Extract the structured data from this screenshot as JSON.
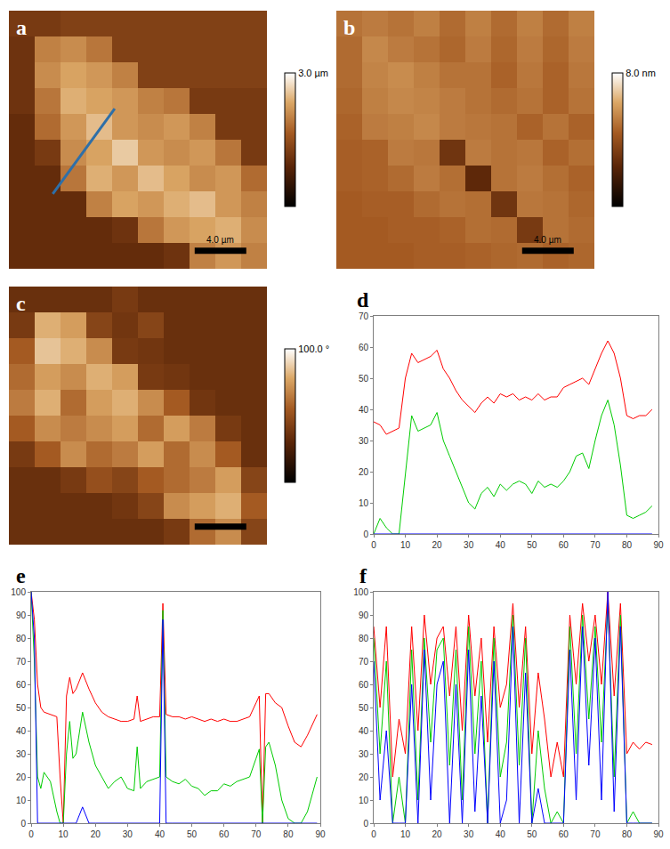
{
  "chart_data": [
    {
      "type": "heatmap",
      "panel": "a",
      "z": [
        [
          1.2,
          1.2,
          1.3,
          1.3,
          1.3,
          1.3,
          1.3,
          1.3,
          1.3,
          1.3
        ],
        [
          1.1,
          2.0,
          2.1,
          1.9,
          1.3,
          1.3,
          1.3,
          1.3,
          1.3,
          1.3
        ],
        [
          1.1,
          2.1,
          2.3,
          2.2,
          2.0,
          1.3,
          1.3,
          1.3,
          1.3,
          1.3
        ],
        [
          1.1,
          1.9,
          2.4,
          2.3,
          2.2,
          2.0,
          1.9,
          1.2,
          1.2,
          1.2
        ],
        [
          1.0,
          1.8,
          2.2,
          2.5,
          2.2,
          2.1,
          2.2,
          2.0,
          1.2,
          1.2
        ],
        [
          1.0,
          1.2,
          2.1,
          2.3,
          2.6,
          2.2,
          2.1,
          2.2,
          1.9,
          1.2
        ],
        [
          1.0,
          1.0,
          1.9,
          2.4,
          2.2,
          2.5,
          2.3,
          2.1,
          2.2,
          1.8
        ],
        [
          1.0,
          1.0,
          1.0,
          2.0,
          2.3,
          2.2,
          2.4,
          2.5,
          2.2,
          2.0
        ],
        [
          1.0,
          1.0,
          1.0,
          1.0,
          1.1,
          1.9,
          2.2,
          2.3,
          2.4,
          2.1
        ],
        [
          1.0,
          1.0,
          1.0,
          1.0,
          1.0,
          1.0,
          1.1,
          2.0,
          2.2,
          2.0
        ]
      ],
      "colorbar": {
        "range": [
          0,
          3
        ],
        "ticks": [
          {
            "value": 3,
            "label": "3.0 µm"
          }
        ]
      },
      "scale_bar": {
        "label": "4.0 µm"
      },
      "profile_line": {
        "x": [
          1.2,
          3.6
        ],
        "y": [
          6.6,
          3.3
        ],
        "color": "#2e6fa8"
      },
      "tick_labels": false
    },
    {
      "type": "heatmap",
      "panel": "b",
      "z": [
        [
          5.0,
          5.2,
          5.0,
          5.3,
          4.8,
          5.3,
          4.8,
          5.3,
          4.8,
          5.3
        ],
        [
          4.8,
          5.5,
          5.2,
          5.0,
          4.7,
          5.2,
          4.7,
          5.2,
          4.7,
          5.2
        ],
        [
          4.8,
          5.4,
          5.6,
          5.3,
          5.0,
          5.0,
          4.6,
          5.1,
          4.6,
          5.1
        ],
        [
          4.7,
          5.3,
          5.5,
          5.4,
          5.2,
          5.0,
          4.8,
          5.0,
          4.6,
          5.0
        ],
        [
          4.6,
          5.2,
          5.3,
          5.5,
          5.2,
          5.1,
          5.0,
          4.6,
          5.0,
          4.6
        ],
        [
          4.5,
          4.6,
          5.2,
          5.1,
          3.0,
          5.2,
          5.0,
          5.1,
          4.6,
          4.9
        ],
        [
          4.5,
          4.6,
          4.8,
          5.2,
          4.9,
          2.5,
          5.0,
          5.2,
          4.9,
          4.6
        ],
        [
          4.4,
          4.5,
          4.5,
          4.8,
          5.0,
          4.9,
          3.0,
          5.1,
          5.0,
          4.7
        ],
        [
          4.4,
          4.4,
          4.5,
          4.5,
          4.6,
          4.9,
          4.8,
          3.2,
          5.0,
          4.8
        ],
        [
          4.4,
          4.4,
          4.4,
          4.5,
          4.5,
          4.6,
          4.7,
          4.8,
          4.6,
          4.7
        ]
      ],
      "colorbar": {
        "range": [
          0,
          8
        ],
        "ticks": [
          {
            "value": 8,
            "label": "8.0 nm"
          }
        ]
      },
      "scale_bar": {
        "label": "4.0 µm"
      },
      "tick_labels": false
    },
    {
      "type": "heatmap",
      "panel": "c",
      "z": [
        [
          35,
          35,
          35,
          35,
          40,
          35,
          35,
          35,
          35,
          35
        ],
        [
          40,
          80,
          75,
          45,
          38,
          45,
          35,
          35,
          35,
          35
        ],
        [
          55,
          85,
          80,
          70,
          40,
          38,
          35,
          35,
          35,
          35
        ],
        [
          60,
          75,
          70,
          80,
          75,
          40,
          38,
          35,
          35,
          35
        ],
        [
          65,
          80,
          60,
          75,
          80,
          70,
          55,
          38,
          35,
          35
        ],
        [
          55,
          70,
          65,
          70,
          75,
          60,
          75,
          65,
          40,
          35
        ],
        [
          40,
          55,
          70,
          60,
          65,
          75,
          60,
          70,
          55,
          35
        ],
        [
          35,
          35,
          40,
          50,
          45,
          55,
          60,
          65,
          75,
          45
        ],
        [
          35,
          35,
          35,
          35,
          38,
          45,
          70,
          75,
          80,
          55
        ],
        [
          35,
          35,
          35,
          35,
          35,
          35,
          40,
          60,
          70,
          45
        ]
      ],
      "colorbar": {
        "range": [
          0,
          100
        ],
        "ticks": [
          {
            "value": 100,
            "label": "100.0 °"
          }
        ]
      },
      "scale_bar": true,
      "tick_labels": false
    },
    {
      "type": "line",
      "panel": "d",
      "x": [
        0,
        2,
        4,
        6,
        8,
        10,
        12,
        14,
        16,
        18,
        20,
        22,
        24,
        26,
        28,
        30,
        32,
        34,
        36,
        38,
        40,
        42,
        44,
        46,
        48,
        50,
        52,
        54,
        56,
        58,
        60,
        62,
        64,
        66,
        68,
        70,
        72,
        74,
        76,
        78,
        80,
        82,
        84,
        86,
        88
      ],
      "series": [
        {
          "color": "#ff0000",
          "values": [
            36,
            35,
            32,
            33,
            34,
            50,
            58,
            55,
            56,
            57,
            59,
            53,
            50,
            46,
            43,
            41,
            39,
            42,
            44,
            42,
            45,
            44,
            45,
            43,
            44,
            43,
            45,
            43,
            44,
            44,
            47,
            48,
            49,
            50,
            48,
            53,
            58,
            62,
            58,
            50,
            38,
            37,
            38,
            38,
            40
          ]
        },
        {
          "color": "#00cc00",
          "values": [
            0,
            5,
            2,
            0,
            0,
            20,
            38,
            33,
            34,
            35,
            39,
            30,
            25,
            20,
            15,
            10,
            8,
            13,
            15,
            12,
            16,
            14,
            16,
            17,
            16,
            13,
            17,
            15,
            16,
            15,
            17,
            20,
            25,
            26,
            21,
            30,
            38,
            43,
            35,
            22,
            6,
            5,
            6,
            7,
            9
          ]
        },
        {
          "color": "#0000ff",
          "values": [
            0,
            0,
            0,
            0,
            0,
            0,
            0,
            0,
            0,
            0,
            0,
            0,
            0,
            0,
            0,
            0,
            0,
            0,
            0,
            0,
            0,
            0,
            0,
            0,
            0,
            0,
            0,
            0,
            0,
            0,
            0,
            0,
            0,
            0,
            0,
            0,
            0,
            0,
            0,
            0,
            0,
            0,
            0,
            0,
            0
          ]
        }
      ],
      "xlim": [
        0,
        90
      ],
      "xticks": [
        0,
        10,
        20,
        30,
        40,
        50,
        60,
        70,
        80,
        90
      ],
      "ylim": [
        0,
        70
      ],
      "yticks": [
        0,
        10,
        20,
        30,
        40,
        50,
        60,
        70
      ],
      "grid": false
    },
    {
      "type": "line",
      "panel": "e",
      "x": [
        0,
        1,
        2,
        3,
        4,
        6,
        8,
        9,
        10,
        11,
        12,
        13,
        14,
        16,
        18,
        20,
        22,
        24,
        26,
        28,
        30,
        32,
        33,
        34,
        36,
        38,
        40,
        41,
        42,
        44,
        46,
        48,
        50,
        52,
        54,
        56,
        58,
        60,
        62,
        64,
        66,
        68,
        70,
        71,
        72,
        73,
        74,
        76,
        78,
        80,
        82,
        84,
        86,
        88,
        89
      ],
      "series": [
        {
          "color": "#ff0000",
          "values": [
            100,
            88,
            60,
            50,
            48,
            47,
            46,
            20,
            0,
            55,
            63,
            56,
            58,
            65,
            58,
            52,
            48,
            46,
            45,
            44,
            44,
            45,
            55,
            44,
            45,
            46,
            46,
            95,
            47,
            46,
            46,
            45,
            46,
            45,
            44,
            45,
            44,
            45,
            44,
            44,
            45,
            46,
            52,
            55,
            0,
            56,
            56,
            52,
            50,
            42,
            35,
            33,
            38,
            44,
            47
          ]
        },
        {
          "color": "#00cc00",
          "values": [
            100,
            70,
            20,
            15,
            22,
            18,
            5,
            0,
            0,
            30,
            44,
            28,
            30,
            48,
            35,
            25,
            20,
            15,
            18,
            20,
            15,
            14,
            33,
            15,
            18,
            19,
            20,
            92,
            20,
            18,
            17,
            19,
            16,
            15,
            12,
            14,
            14,
            17,
            16,
            18,
            19,
            20,
            28,
            32,
            0,
            33,
            35,
            25,
            10,
            2,
            0,
            0,
            5,
            15,
            20
          ]
        },
        {
          "color": "#0000ff",
          "values": [
            100,
            80,
            0,
            0,
            0,
            0,
            0,
            0,
            0,
            0,
            0,
            0,
            0,
            7,
            0,
            0,
            0,
            0,
            0,
            0,
            0,
            0,
            0,
            0,
            0,
            0,
            0,
            88,
            0,
            0,
            0,
            0,
            0,
            0,
            0,
            0,
            0,
            0,
            0,
            0,
            0,
            0,
            0,
            0,
            0,
            0,
            0,
            0,
            0,
            0,
            0,
            0,
            0,
            0,
            0
          ]
        }
      ],
      "xlim": [
        0,
        90
      ],
      "xticks": [
        0,
        10,
        20,
        30,
        40,
        50,
        60,
        70,
        80,
        90
      ],
      "ylim": [
        0,
        100
      ],
      "yticks": [
        0,
        10,
        20,
        30,
        40,
        50,
        60,
        70,
        80,
        90,
        100
      ],
      "grid": false
    },
    {
      "type": "line",
      "panel": "f",
      "x": [
        0,
        2,
        4,
        6,
        8,
        10,
        12,
        14,
        16,
        18,
        20,
        22,
        24,
        26,
        28,
        30,
        32,
        34,
        36,
        38,
        40,
        42,
        44,
        46,
        48,
        50,
        52,
        54,
        56,
        58,
        60,
        62,
        64,
        66,
        68,
        70,
        72,
        74,
        76,
        78,
        80,
        82,
        84,
        86,
        88
      ],
      "series": [
        {
          "color": "#ff0000",
          "values": [
            85,
            50,
            85,
            20,
            45,
            30,
            85,
            40,
            90,
            60,
            80,
            85,
            55,
            85,
            40,
            90,
            55,
            80,
            35,
            85,
            50,
            60,
            95,
            50,
            85,
            30,
            65,
            45,
            20,
            35,
            20,
            90,
            60,
            95,
            70,
            90,
            60,
            100,
            55,
            95,
            30,
            35,
            32,
            35,
            34
          ]
        },
        {
          "color": "#00cc00",
          "values": [
            80,
            30,
            70,
            0,
            20,
            0,
            75,
            10,
            80,
            35,
            75,
            80,
            25,
            75,
            10,
            85,
            30,
            70,
            0,
            80,
            20,
            35,
            90,
            25,
            80,
            0,
            40,
            15,
            0,
            5,
            0,
            85,
            30,
            90,
            45,
            85,
            35,
            95,
            20,
            90,
            0,
            5,
            0,
            0,
            0
          ]
        },
        {
          "color": "#0000ff",
          "values": [
            70,
            10,
            40,
            0,
            0,
            0,
            60,
            0,
            75,
            10,
            60,
            70,
            0,
            60,
            0,
            75,
            5,
            55,
            0,
            70,
            0,
            10,
            85,
            0,
            65,
            0,
            15,
            0,
            0,
            0,
            0,
            75,
            10,
            85,
            25,
            80,
            10,
            100,
            5,
            85,
            0,
            0,
            0,
            0,
            0
          ]
        }
      ],
      "xlim": [
        0,
        90
      ],
      "xticks": [
        0,
        10,
        20,
        30,
        40,
        50,
        60,
        70,
        80,
        90
      ],
      "ylim": [
        0,
        100
      ],
      "yticks": [
        0,
        10,
        20,
        30,
        40,
        50,
        60,
        70,
        80,
        90,
        100
      ],
      "grid": false
    }
  ]
}
